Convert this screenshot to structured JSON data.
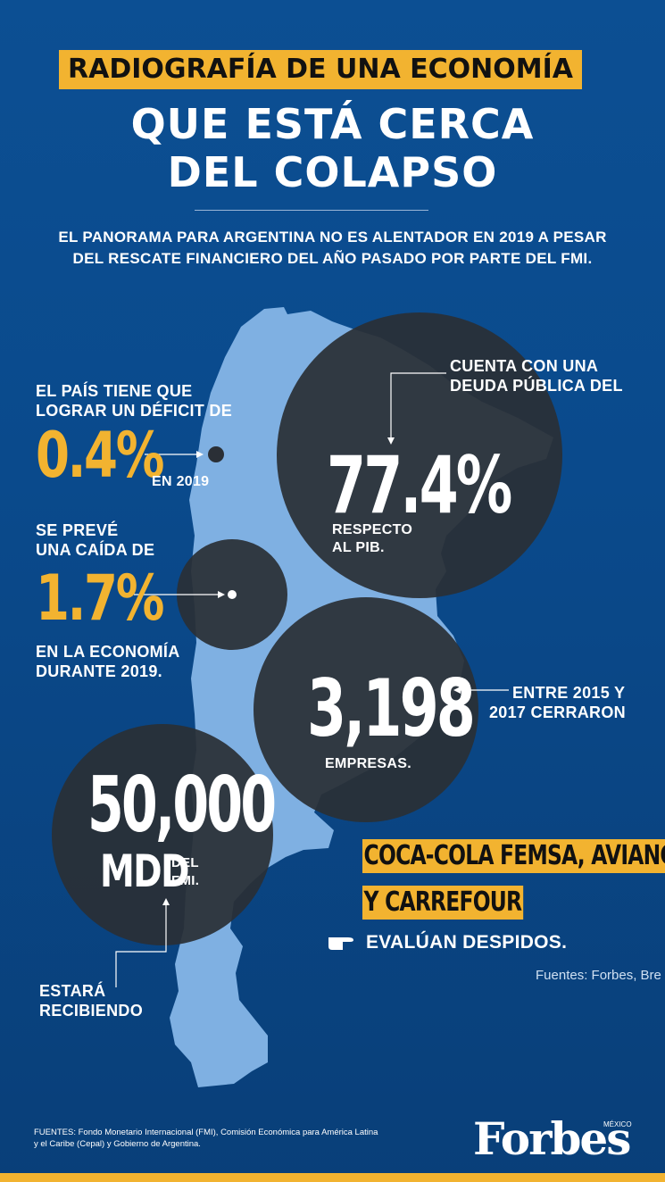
{
  "title": {
    "line1": "RADIOGRAFÍA DE UNA ECONOMÍA",
    "line2": "QUE ESTÁ CERCA",
    "line3": "DEL COLAPSO"
  },
  "subtitle": {
    "line1": "EL PANORAMA PARA ARGENTINA NO ES ALENTADOR EN 2019 A PESAR",
    "line2": "DEL RESCATE FINANCIERO DEL AÑO PASADO POR PARTE DEL FMI."
  },
  "deficit": {
    "label_line1": "EL PAÍS TIENE QUE",
    "label_line2": "LOGRAR UN DÉFICIT DE",
    "value": "0.4%",
    "suffix": "EN 2019"
  },
  "caida": {
    "label_line1": "SE PREVÉ",
    "label_line2": "UNA CAÍDA DE",
    "value": "1.7%",
    "suffix_line1": "EN LA ECONOMÍA",
    "suffix_line2": "DURANTE 2019."
  },
  "deuda": {
    "label_line1": "CUENTA CON UNA",
    "label_line2": "DEUDA PÚBLICA DEL",
    "value": "77.4%",
    "suffix_line1": "RESPECTO",
    "suffix_line2": "AL PIB."
  },
  "empresas": {
    "label_line1": "ENTRE 2015 Y",
    "label_line2": "2017 CERRARON",
    "value": "3,198",
    "suffix": "EMPRESAS."
  },
  "rescate": {
    "value": "50,000",
    "unit": "MDD",
    "suffix_line1": "DEL",
    "suffix_line2": "FMI.",
    "label_line1": "ESTARÁ",
    "label_line2": "RECIBIENDO"
  },
  "companies": {
    "line1": "COCA-COLA FEMSA, AVIANCA",
    "line2": "Y CARREFOUR",
    "note": "EVALÚAN DESPIDOS."
  },
  "sources_cutoff": "Fuentes: Forbes, Bre",
  "footer": {
    "sources_line1": "FUENTES: Fondo Monetario Internacional (FMI), Comisión Económica para América Latina",
    "sources_line2": "y el Caribe (Cepal) y Gobierno de Argentina.",
    "brand": "Forbes",
    "brand_region": "MÉXICO"
  },
  "colors": {
    "background": "#0b4a8c",
    "accent_yellow": "#f2b330",
    "map": "#7fb0e2",
    "circle": "#2a2f36"
  },
  "icons": {
    "pointing_hand": "pointing-hand-icon"
  }
}
